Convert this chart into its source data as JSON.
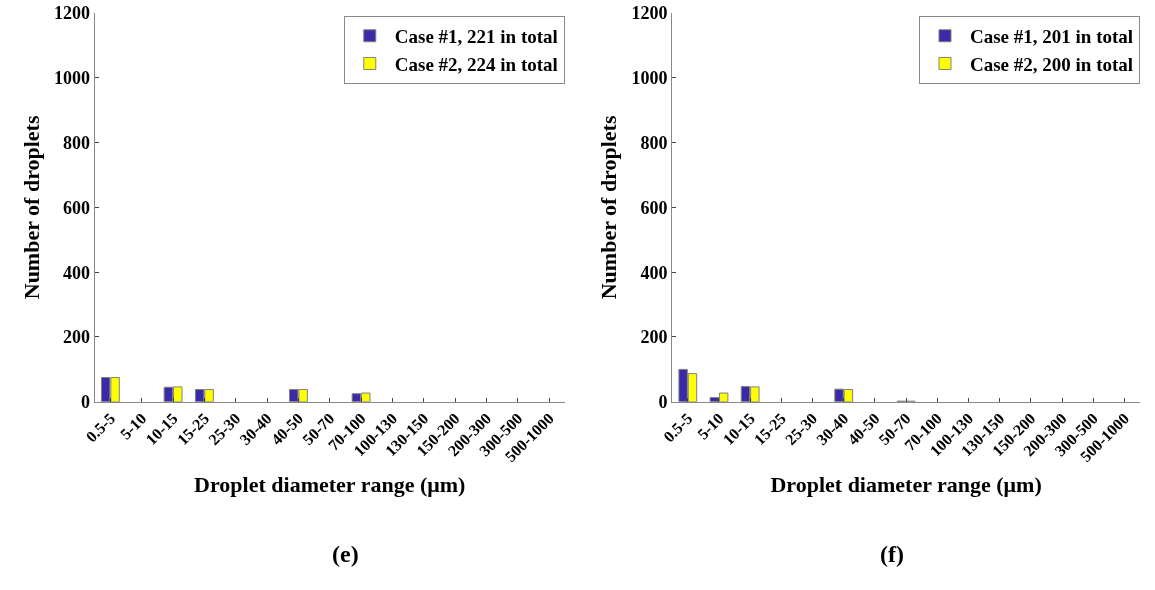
{
  "chart_data": [
    {
      "type": "bar",
      "xlabel": "Droplet diameter range (μm)",
      "ylabel": "Number of droplets",
      "annotations": [
        "(e)"
      ],
      "categories": [
        "0.5-5",
        "5-10",
        "10-15",
        "15-25",
        "25-30",
        "30-40",
        "40-50",
        "50-70",
        "70-100",
        "100-130",
        "130-150",
        "150-200",
        "200-300",
        "300-500",
        "500-1000"
      ],
      "series": [
        {
          "name": "Case #1, 221 in total",
          "color": "#3a2aa8",
          "values": [
            75,
            0,
            45,
            38,
            0,
            0,
            38,
            0,
            25,
            0,
            0,
            0,
            0,
            0,
            0
          ]
        },
        {
          "name": "Case #2, 224 in total",
          "color": "#ffff00",
          "values": [
            75,
            0,
            46,
            38,
            0,
            0,
            38,
            0,
            27,
            0,
            0,
            0,
            0,
            0,
            0
          ]
        }
      ],
      "ylim": [
        0,
        1200
      ],
      "yticks": [
        0,
        200,
        400,
        600,
        800,
        1000,
        1200
      ],
      "grid": false,
      "legend": "top right"
    },
    {
      "type": "bar",
      "xlabel": "Droplet diameter range (μm)",
      "ylabel": "Number of droplets",
      "annotations": [
        "(f)"
      ],
      "categories": [
        "0.5-5",
        "5-10",
        "10-15",
        "15-25",
        "25-30",
        "30-40",
        "40-50",
        "50-70",
        "70-100",
        "100-130",
        "130-150",
        "150-200",
        "200-300",
        "300-500",
        "500-1000"
      ],
      "series": [
        {
          "name": "Case #1, 201 in total",
          "color": "#3a2aa8",
          "values": [
            100,
            13,
            47,
            0,
            0,
            39,
            0,
            2,
            0,
            0,
            0,
            0,
            0,
            0,
            0
          ]
        },
        {
          "name": "Case #2, 200 in total",
          "color": "#ffff00",
          "values": [
            87,
            27,
            46,
            0,
            0,
            38,
            0,
            2,
            0,
            0,
            0,
            0,
            0,
            0,
            0
          ]
        }
      ],
      "ylim": [
        0,
        1200
      ],
      "yticks": [
        0,
        200,
        400,
        600,
        800,
        1000,
        1200
      ],
      "grid": false,
      "legend": "top right"
    }
  ]
}
